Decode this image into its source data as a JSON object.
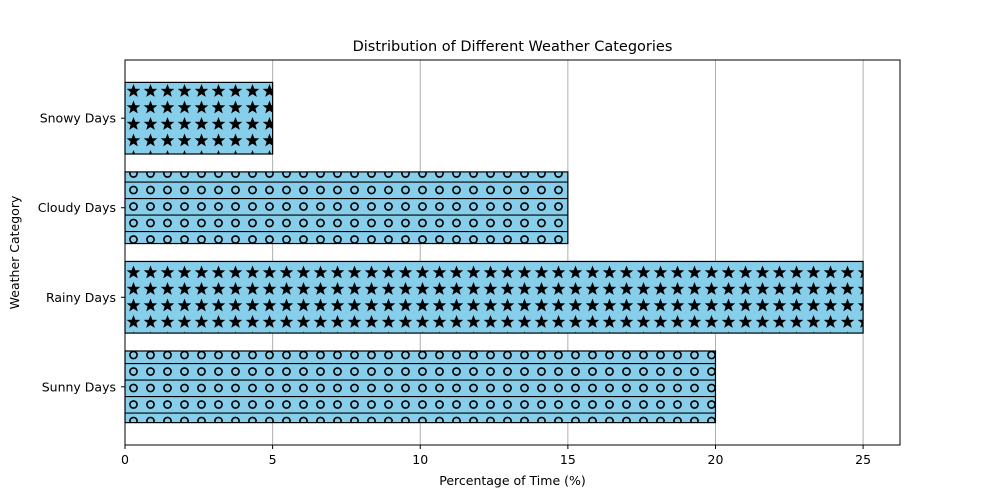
{
  "chart_data": {
    "type": "bar",
    "orientation": "horizontal",
    "title": "Distribution of Different Weather Categories",
    "xlabel": "Percentage of Time (%)",
    "ylabel": "Weather Category",
    "categories": [
      "Sunny Days",
      "Rainy Days",
      "Cloudy Days",
      "Snowy Days"
    ],
    "values": [
      20,
      25,
      15,
      5
    ],
    "hatches": [
      "circles",
      "stars",
      "circles",
      "stars"
    ],
    "xlim": [
      0,
      26.25
    ],
    "xticks": [
      0,
      5,
      10,
      15,
      20,
      25
    ],
    "xtick_labels": [
      "0",
      "5",
      "10",
      "15",
      "20",
      "25"
    ],
    "grid": "vertical",
    "colors": {
      "bar_fill": "#87ceeb",
      "hatch": "#000000",
      "edge": "#000000",
      "grid": "#b0b0b0"
    }
  }
}
